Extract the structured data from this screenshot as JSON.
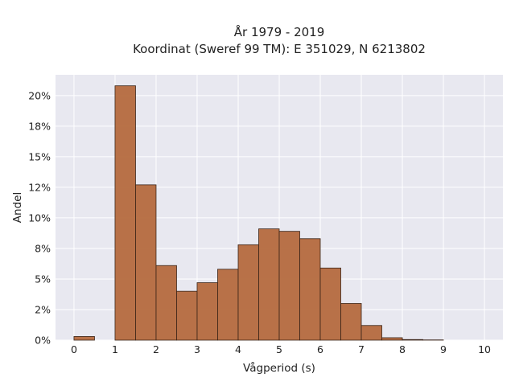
{
  "chart_data": {
    "type": "bar",
    "title_line1": "År 1979 - 2019",
    "title_line2": "Koordinat (Sweref 99 TM): E 351029, N 6213802",
    "xlabel": "Vågperiod (s)",
    "ylabel": "Andel",
    "bin_width": 0.5,
    "bins": [
      {
        "x0": 0.0,
        "value": 0.003
      },
      {
        "x0": 1.0,
        "value": 0.208
      },
      {
        "x0": 1.5,
        "value": 0.127
      },
      {
        "x0": 2.0,
        "value": 0.061
      },
      {
        "x0": 2.5,
        "value": 0.04
      },
      {
        "x0": 3.0,
        "value": 0.047
      },
      {
        "x0": 3.5,
        "value": 0.058
      },
      {
        "x0": 4.0,
        "value": 0.078
      },
      {
        "x0": 4.5,
        "value": 0.091
      },
      {
        "x0": 5.0,
        "value": 0.089
      },
      {
        "x0": 5.5,
        "value": 0.083
      },
      {
        "x0": 6.0,
        "value": 0.059
      },
      {
        "x0": 6.5,
        "value": 0.03
      },
      {
        "x0": 7.0,
        "value": 0.012
      },
      {
        "x0": 7.5,
        "value": 0.002
      },
      {
        "x0": 8.0,
        "value": 0.0005
      },
      {
        "x0": 8.5,
        "value": 0.0002
      }
    ],
    "xlim": [
      -0.45,
      10.45
    ],
    "ylim": [
      0,
      0.217
    ],
    "x_ticks": [
      0,
      1,
      2,
      3,
      4,
      5,
      6,
      7,
      8,
      9,
      10
    ],
    "y_ticks": [
      {
        "v": 0.0,
        "label": "0%"
      },
      {
        "v": 0.025,
        "label": "2%"
      },
      {
        "v": 0.05,
        "label": "5%"
      },
      {
        "v": 0.075,
        "label": "8%"
      },
      {
        "v": 0.1,
        "label": "10%"
      },
      {
        "v": 0.125,
        "label": "12%"
      },
      {
        "v": 0.15,
        "label": "15%"
      },
      {
        "v": 0.175,
        "label": "18%"
      },
      {
        "v": 0.2,
        "label": "20%"
      }
    ],
    "grid": true,
    "colors": {
      "bar_fill": "#b56a3e",
      "bar_stroke": "#3a2418",
      "plot_bg": "#e8e8f0",
      "grid": "#ffffff"
    }
  }
}
